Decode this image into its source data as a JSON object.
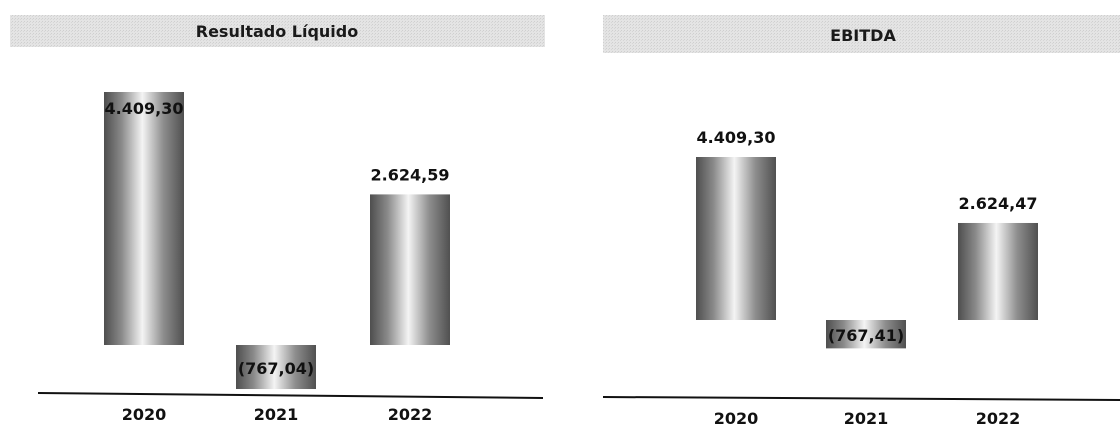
{
  "chart_data": [
    {
      "type": "bar",
      "title": "Resultado Líquido",
      "categories": [
        "2020",
        "2021",
        "2022"
      ],
      "values": [
        4409.3,
        -767.04,
        2624.59
      ],
      "value_labels": [
        "4.409,30",
        "(767,04)",
        "2.624,59"
      ],
      "xlabel": "",
      "ylabel": "",
      "grid": false,
      "legend": "none"
    },
    {
      "type": "bar",
      "title": "EBITDA",
      "categories": [
        "2020",
        "2021",
        "2022"
      ],
      "values": [
        4409.3,
        -767.41,
        2624.47
      ],
      "value_labels": [
        "4.409,30",
        "(767,41)",
        "2.624,47"
      ],
      "xlabel": "",
      "ylabel": "",
      "grid": false,
      "legend": "none"
    }
  ]
}
